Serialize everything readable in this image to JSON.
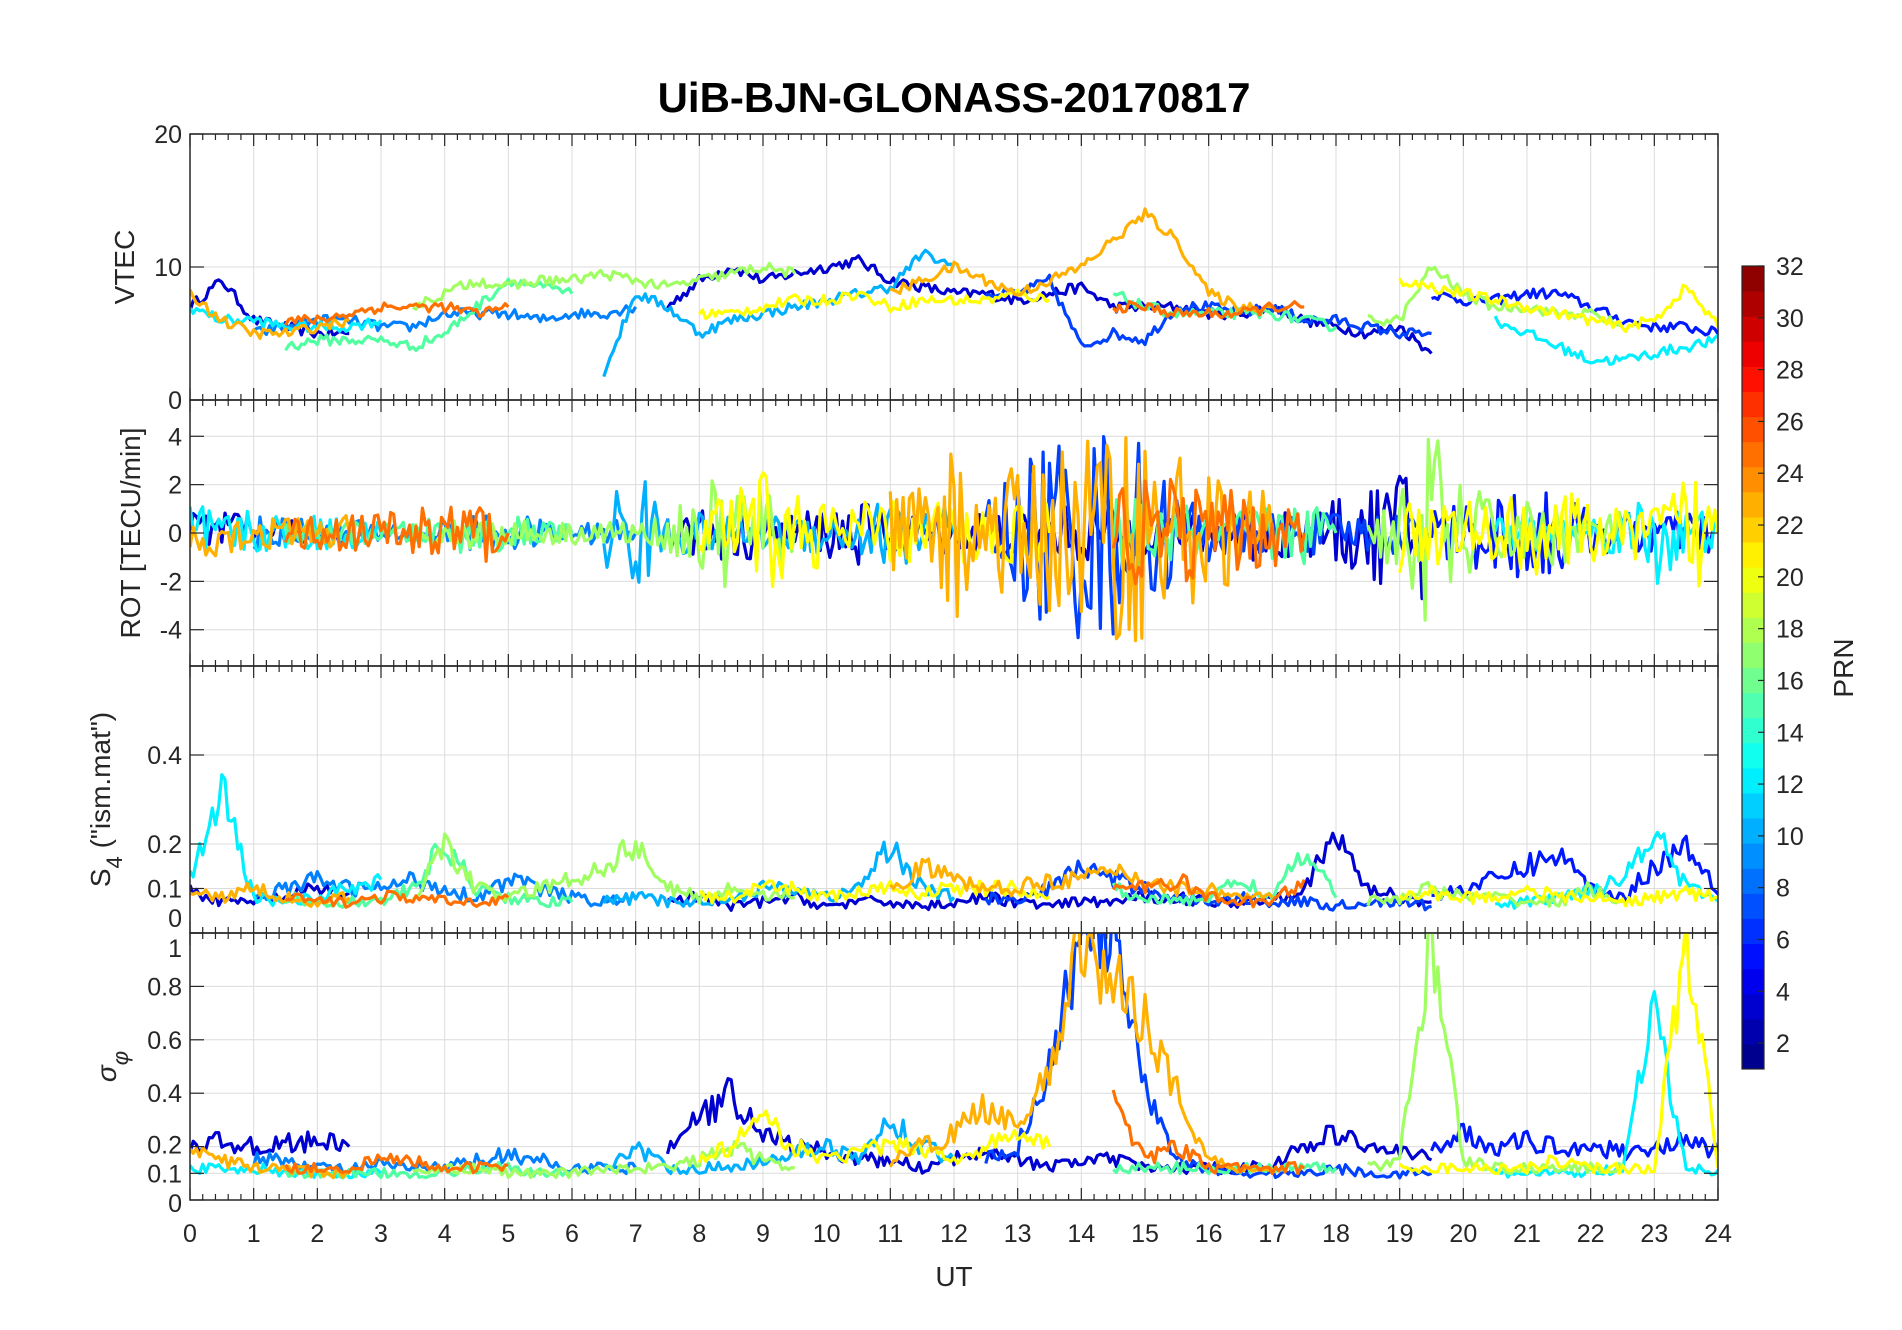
{
  "chart_data": {
    "type": "line",
    "title": "UiB-BJN-GLONASS-20170817",
    "xlabel": "UT",
    "xlim": [
      0,
      24
    ],
    "xticks": [
      "0",
      "1",
      "2",
      "3",
      "4",
      "5",
      "6",
      "7",
      "8",
      "9",
      "10",
      "11",
      "12",
      "13",
      "14",
      "15",
      "16",
      "17",
      "18",
      "19",
      "20",
      "21",
      "22",
      "23",
      "24"
    ],
    "grid": true,
    "time_step_hours": 0.5,
    "panels": [
      {
        "key": "vtec",
        "ylabel": "VTEC",
        "ylim": [
          0,
          20
        ],
        "yticks": [
          0,
          10,
          20
        ],
        "ytick_labels": [
          "0",
          "10",
          "20"
        ]
      },
      {
        "key": "rot",
        "ylabel": "ROT [TECU/min]",
        "ylim": [
          -5.5,
          5.5
        ],
        "yticks": [
          -4,
          -2,
          0,
          2,
          4
        ],
        "ytick_labels": [
          "-4",
          "-2",
          "0",
          "2",
          "4"
        ]
      },
      {
        "key": "s4",
        "ylabel": "S4 (\"ism.mat\")",
        "ylabel_main": "S",
        "ylabel_sub": "4",
        "ylabel_rest": " (\"ism.mat\")",
        "ylim": [
          0,
          0.6
        ],
        "yticks": [
          0,
          0.1,
          0.2,
          0.4
        ],
        "ytick_labels": [
          "0",
          "0.1",
          "0.2",
          "0.4"
        ]
      },
      {
        "key": "sigma",
        "ylabel": "σφ",
        "ylabel_main": "σ",
        "ylabel_sub": "φ",
        "ylim": [
          0,
          1
        ],
        "yticks": [
          0,
          0.1,
          0.2,
          0.4,
          0.6,
          0.8,
          1
        ],
        "ytick_labels": [
          "0",
          "0.1",
          "0.2",
          "0.4",
          "0.6",
          "0.8",
          "1"
        ]
      }
    ],
    "colorbar": {
      "label": "PRN",
      "range": [
        1,
        32
      ],
      "levels": 32,
      "colormap": "jet",
      "ticks": [
        "2",
        "4",
        "6",
        "8",
        "10",
        "12",
        "14",
        "16",
        "18",
        "20",
        "22",
        "24",
        "26",
        "28",
        "30",
        "32"
      ]
    },
    "series": [
      {
        "prn": 3,
        "color": "#0000d0",
        "t0": 0,
        "vtec": [
          7,
          9,
          6,
          5.5,
          5,
          5
        ],
        "rot": [
          1.5,
          1,
          0.8,
          0.6,
          0.5,
          0.5
        ],
        "s4": [
          0.1,
          0.07,
          0.07,
          0.08,
          0.1,
          0.09
        ],
        "sigma": [
          0.2,
          0.22,
          0.2,
          0.21,
          0.22,
          0.2
        ]
      },
      {
        "prn": 3,
        "color": "#0000d0",
        "t0": 7.5,
        "vtec": [
          7,
          9,
          10,
          9,
          9.5,
          10,
          10.5,
          9,
          8.5,
          8,
          8,
          7.5,
          8,
          8.5,
          7,
          7,
          7,
          6.5,
          6.5,
          7,
          6,
          5.5,
          5,
          5.5,
          3.5
        ],
        "rot": [
          1,
          1.2,
          1.5,
          1,
          1,
          1.2,
          1.5,
          1,
          0.8,
          1,
          1.2,
          1.2,
          1,
          1.5,
          1.5,
          1,
          0.8,
          1,
          1.5,
          1.5,
          1,
          1.5,
          2,
          3,
          5
        ],
        "s4": [
          0.07,
          0.08,
          0.06,
          0.07,
          0.08,
          0.06,
          0.07,
          0.07,
          0.06,
          0.07,
          0.08,
          0.07,
          0.06,
          0.07,
          0.07,
          0.08,
          0.08,
          0.07,
          0.07,
          0.08,
          0.1,
          0.22,
          0.1,
          0.08,
          0.07
        ],
        "sigma": [
          0.2,
          0.3,
          0.4,
          0.25,
          0.2,
          0.18,
          0.15,
          0.15,
          0.12,
          0.15,
          0.2,
          0.15,
          0.12,
          0.15,
          0.15,
          0.12,
          0.12,
          0.12,
          0.12,
          0.13,
          0.2,
          0.25,
          0.2,
          0.18,
          0.15
        ]
      },
      {
        "prn": 5,
        "color": "#0018ff",
        "t0": 19.5,
        "vtec": [
          8,
          7.5,
          7.5,
          8,
          8,
          7,
          6,
          5.5,
          5.5,
          5,
          5.5,
          4.5,
          4
        ],
        "rot": [
          1.5,
          1.5,
          2,
          2.5,
          2,
          1,
          1,
          1,
          1,
          1,
          3.5,
          1.5,
          1
        ],
        "s4": [
          0.08,
          0.1,
          0.12,
          0.15,
          0.18,
          0.1,
          0.08,
          0.15,
          0.2,
          0.1,
          0.15,
          0.18,
          0.14
        ],
        "sigma": [
          0.2,
          0.25,
          0.2,
          0.22,
          0.2,
          0.2,
          0.18,
          0.2,
          0.22,
          0.18,
          0.2,
          0.2,
          0.18
        ]
      },
      {
        "prn": 6,
        "color": "#0040ff",
        "t0": 12.5,
        "vtec": [
          8,
          8,
          9,
          4,
          5,
          4.5,
          7,
          7,
          6.5,
          7,
          6,
          6,
          5.5,
          5,
          5
        ],
        "rot": [
          2,
          3,
          5,
          5,
          5,
          4,
          2,
          1.5,
          1,
          1,
          1,
          1,
          1,
          1,
          1
        ],
        "s4": [
          0.08,
          0.07,
          0.1,
          0.15,
          0.12,
          0.1,
          0.08,
          0.07,
          0.08,
          0.07,
          0.07,
          0.06,
          0.07,
          0.07,
          0.06
        ],
        "sigma": [
          0.15,
          0.2,
          0.5,
          1,
          1,
          0.4,
          0.15,
          0.12,
          0.1,
          0.1,
          0.1,
          0.12,
          0.1,
          0.1,
          0.1
        ]
      },
      {
        "prn": 8,
        "color": "#0080ff",
        "t0": 1,
        "vtec": [
          5,
          5.5,
          6,
          6,
          5.5,
          5.5,
          6.5,
          6.5,
          6.5,
          6,
          6.5,
          6.5,
          7
        ],
        "rot": [
          0.8,
          0.8,
          0.6,
          0.6,
          0.5,
          0.5,
          0.6,
          0.8,
          1,
          0.6,
          0.5,
          0.5,
          0.8
        ],
        "s4": [
          0.08,
          0.1,
          0.12,
          0.1,
          0.1,
          0.12,
          0.1,
          0.08,
          0.12,
          0.1,
          0.08,
          0.07,
          0.08
        ],
        "sigma": [
          0.15,
          0.15,
          0.12,
          0.12,
          0.13,
          0.12,
          0.12,
          0.15,
          0.17,
          0.15,
          0.12,
          0.12,
          0.12
        ]
      },
      {
        "prn": 10,
        "color": "#00b0ff",
        "t0": 6.5,
        "vtec": [
          2,
          8,
          7,
          5,
          6,
          6.5,
          7,
          7.5,
          8,
          8.5,
          11,
          10
        ],
        "rot": [
          2,
          3,
          1,
          1,
          0.8,
          0.8,
          1,
          1,
          1.5,
          1.5,
          2,
          1.5
        ],
        "s4": [
          0.07,
          0.08,
          0.07,
          0.07,
          0.08,
          0.1,
          0.1,
          0.08,
          0.1,
          0.2,
          0.1,
          0.08
        ],
        "sigma": [
          0.12,
          0.2,
          0.12,
          0.12,
          0.12,
          0.15,
          0.18,
          0.2,
          0.15,
          0.3,
          0.2,
          0.15
        ]
      },
      {
        "prn": 12,
        "color": "#00f0ff",
        "t0": 0,
        "vtec": [
          7,
          6,
          6,
          5.5,
          5.5,
          5.5,
          6
        ],
        "rot": [
          1.5,
          1,
          1,
          0.8,
          0.8,
          0.8,
          0.8
        ],
        "s4": [
          0.12,
          0.32,
          0.08,
          0.07,
          0.08,
          0.1,
          0.12
        ],
        "sigma": [
          0.12,
          0.12,
          0.12,
          0.1,
          0.1,
          0.1,
          0.1
        ]
      },
      {
        "prn": 12,
        "color": "#00f0ff",
        "t0": 20.5,
        "vtec": [
          6,
          5,
          4,
          3,
          3,
          3.5,
          4,
          4.5,
          5
        ],
        "rot": [
          1,
          1,
          1,
          0.8,
          1,
          3,
          1,
          1,
          1
        ],
        "s4": [
          0.06,
          0.07,
          0.08,
          0.1,
          0.12,
          0.24,
          0.1,
          0.08,
          0.07
        ],
        "sigma": [
          0.1,
          0.1,
          0.1,
          0.1,
          0.12,
          0.7,
          0.12,
          0.1,
          0.1
        ]
      },
      {
        "prn": 15,
        "color": "#50ffa0",
        "t0": 1.5,
        "vtec": [
          4,
          4.5,
          4.5,
          4.5,
          4,
          5,
          7,
          9,
          8.5,
          8
        ],
        "rot": [
          0.5,
          0.5,
          0.5,
          0.5,
          0.5,
          0.8,
          1,
          0.8,
          0.6,
          0.5
        ],
        "s4": [
          0.08,
          0.07,
          0.07,
          0.07,
          0.1,
          0.2,
          0.1,
          0.08,
          0.07,
          0.07
        ],
        "sigma": [
          0.1,
          0.1,
          0.1,
          0.1,
          0.1,
          0.1,
          0.12,
          0.12,
          0.1,
          0.1
        ]
      },
      {
        "prn": 15,
        "color": "#50ffa0",
        "t0": 14.5,
        "vtec": [
          8,
          7,
          6.5,
          6.5,
          6.5,
          6.5,
          6,
          5.5
        ],
        "rot": [
          2,
          1.5,
          1.5,
          1,
          1,
          1.5,
          1.5,
          1
        ],
        "s4": [
          0.1,
          0.08,
          0.07,
          0.08,
          0.12,
          0.08,
          0.18,
          0.08
        ],
        "sigma": [
          0.12,
          0.12,
          0.12,
          0.12,
          0.12,
          0.12,
          0.12,
          0.12
        ]
      },
      {
        "prn": 17,
        "color": "#a0ff60",
        "t0": 3.5,
        "vtec": [
          7,
          8,
          9,
          8.5,
          9,
          9,
          9.5,
          9,
          8.5,
          9,
          9.5,
          10,
          9.5
        ],
        "rot": [
          0.5,
          0.6,
          0.8,
          0.6,
          0.6,
          0.5,
          0.6,
          0.5,
          0.8,
          2,
          3,
          2,
          1.5
        ],
        "s4": [
          0.08,
          0.2,
          0.1,
          0.08,
          0.1,
          0.12,
          0.15,
          0.2,
          0.1,
          0.08,
          0.1,
          0.09,
          0.08
        ],
        "sigma": [
          0.1,
          0.12,
          0.12,
          0.1,
          0.1,
          0.1,
          0.12,
          0.12,
          0.12,
          0.15,
          0.2,
          0.15,
          0.12
        ]
      },
      {
        "prn": 17,
        "color": "#a0ff60",
        "t0": 18.5,
        "vtec": [
          6,
          6,
          10,
          8,
          7,
          7,
          6.5,
          6.5,
          5.5
        ],
        "rot": [
          1,
          2,
          5,
          2,
          2,
          1.5,
          1.5,
          1,
          1
        ],
        "s4": [
          0.07,
          0.08,
          0.1,
          0.08,
          0.08,
          0.07,
          0.07,
          0.1,
          0.07
        ],
        "sigma": [
          0.12,
          0.15,
          1,
          0.15,
          0.12,
          0.12,
          0.12,
          0.12,
          0.12
        ]
      },
      {
        "prn": 20,
        "color": "#ffff00",
        "t0": 8,
        "vtec": [
          6.5,
          6.5,
          7,
          7.5,
          7.5,
          8,
          7,
          7.5,
          7.5,
          7.5,
          8,
          7.5
        ],
        "rot": [
          1,
          2,
          3,
          2,
          1.5,
          1.5,
          1.5,
          1.5,
          1.5,
          1.5,
          1.5,
          1.5
        ],
        "s4": [
          0.08,
          0.08,
          0.1,
          0.1,
          0.08,
          0.09,
          0.1,
          0.09,
          0.1,
          0.1,
          0.1,
          0.08
        ],
        "sigma": [
          0.15,
          0.2,
          0.3,
          0.2,
          0.15,
          0.18,
          0.2,
          0.2,
          0.15,
          0.2,
          0.25,
          0.2
        ]
      },
      {
        "prn": 20,
        "color": "#ffff00",
        "t0": 19,
        "vtec": [
          9,
          8.5,
          8,
          7.5,
          7,
          6.5,
          6,
          5.5,
          6,
          8.5,
          5.5
        ],
        "rot": [
          2,
          1.5,
          1.5,
          1.5,
          2,
          2,
          1.5,
          1,
          1.5,
          3,
          2
        ],
        "s4": [
          0.08,
          0.09,
          0.08,
          0.08,
          0.1,
          0.08,
          0.08,
          0.07,
          0.08,
          0.09,
          0.08
        ],
        "sigma": [
          0.12,
          0.12,
          0.12,
          0.12,
          0.12,
          0.15,
          0.12,
          0.12,
          0.12,
          1,
          0.12
        ]
      },
      {
        "prn": 22,
        "color": "#ffb000",
        "t0": 0,
        "vtec": [
          8,
          6,
          5,
          5,
          5.5,
          6
        ],
        "rot": [
          1.5,
          1,
          0.8,
          0.8,
          0.8,
          0.8
        ],
        "s4": [
          0.09,
          0.08,
          0.1,
          0.08,
          0.07,
          0.08
        ],
        "sigma": [
          0.18,
          0.15,
          0.12,
          0.12,
          0.1,
          0.1
        ]
      },
      {
        "prn": 22,
        "color": "#ffb000",
        "t0": 11,
        "vtec": [
          8,
          9,
          10,
          9,
          8,
          9,
          10,
          12,
          14,
          12,
          8,
          7,
          7
        ],
        "rot": [
          2,
          2.5,
          4,
          3,
          3,
          4,
          5,
          5,
          5,
          4,
          3,
          2,
          2
        ],
        "s4": [
          0.1,
          0.15,
          0.12,
          0.1,
          0.1,
          0.12,
          0.12,
          0.14,
          0.12,
          0.1,
          0.1,
          0.08,
          0.08
        ],
        "sigma": [
          0.15,
          0.2,
          0.25,
          0.35,
          0.3,
          0.45,
          1,
          0.8,
          0.7,
          0.4,
          0.15,
          0.12,
          0.12
        ]
      },
      {
        "prn": 24,
        "color": "#ff7000",
        "t0": 1.5,
        "vtec": [
          6,
          6,
          6.5,
          7,
          7,
          7,
          6.5,
          7
        ],
        "rot": [
          0.8,
          0.8,
          0.8,
          1,
          1.5,
          2,
          1.5,
          1
        ],
        "s4": [
          0.08,
          0.07,
          0.07,
          0.08,
          0.08,
          0.07,
          0.07,
          0.08
        ],
        "sigma": [
          0.12,
          0.12,
          0.12,
          0.15,
          0.15,
          0.12,
          0.12,
          0.13
        ]
      },
      {
        "prn": 24,
        "color": "#ff7000",
        "t0": 14.5,
        "vtec": [
          7,
          7,
          6.5,
          6.5,
          6.5,
          7,
          7
        ],
        "rot": [
          3,
          2.5,
          2.5,
          2,
          2,
          1.5,
          1.5
        ],
        "s4": [
          0.1,
          0.1,
          0.12,
          0.08,
          0.07,
          0.07,
          0.12
        ],
        "sigma": [
          0.4,
          0.15,
          0.2,
          0.12,
          0.12,
          0.12,
          0.12
        ]
      }
    ]
  }
}
